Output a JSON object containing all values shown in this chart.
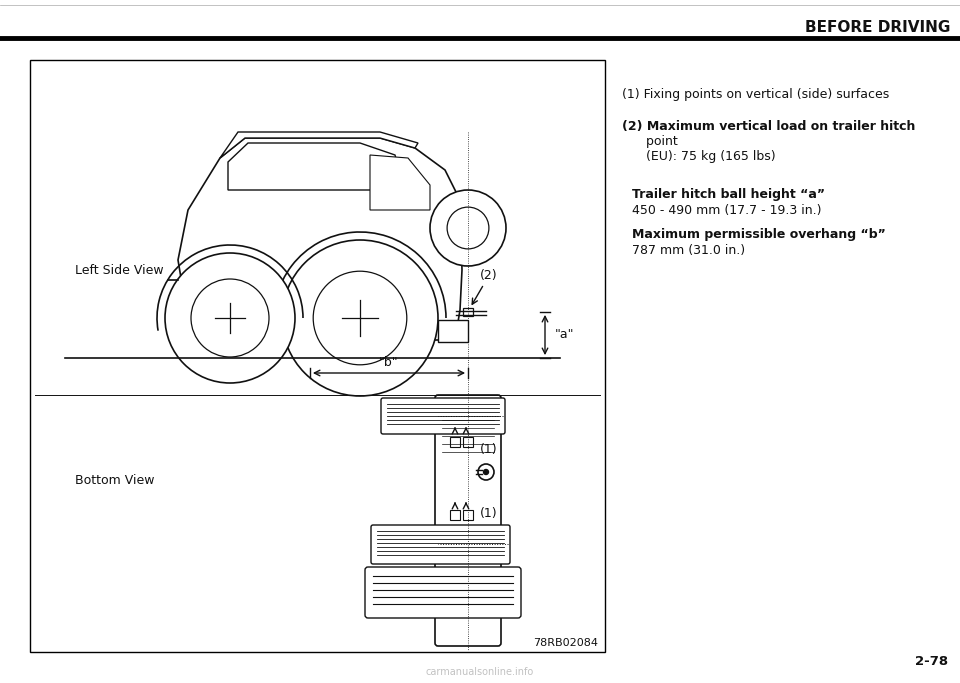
{
  "title": "BEFORE DRIVING",
  "bg_color": "#ffffff",
  "text_color": "#000000",
  "left_side_view_label": "Left Side View",
  "bottom_view_label": "Bottom View",
  "image_code": "78RB02084",
  "label1_text": "(1) Fixing points on vertical (side) surfaces",
  "label2_bold": "(2) Maximum vertical load on trailer hitch",
  "label2_b2": "      point",
  "label2_normal": "      (EU): 75 kg (165 lbs)",
  "label3_bold": "Trailer hitch ball height “a”",
  "label3_normal": "450 - 490 mm (17.7 - 19.3 in.)",
  "label4_bold": "Maximum permissible overhang “b”",
  "label4_normal": "787 mm (31.0 in.)",
  "page_number": "2-78"
}
